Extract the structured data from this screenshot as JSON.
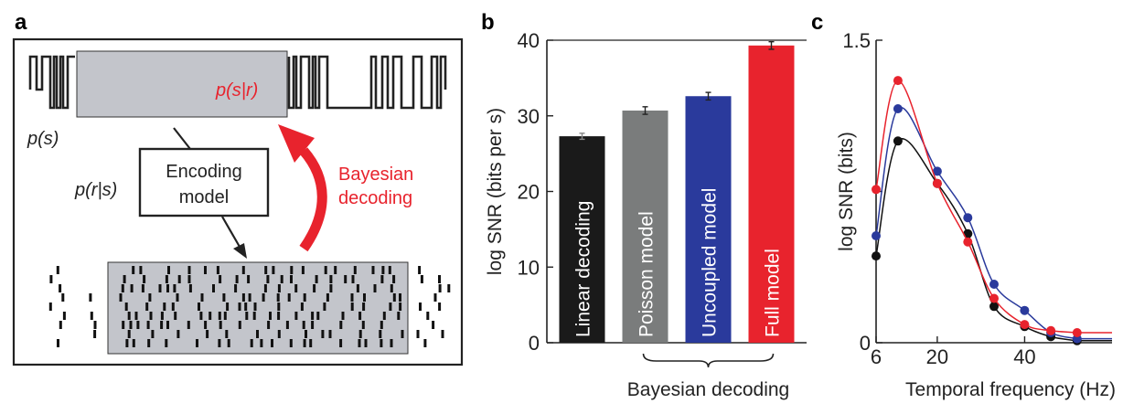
{
  "panels": {
    "a": {
      "letter": "a",
      "ps": "p(s)",
      "psr": "p(s|r)",
      "prs": "p(r|s)",
      "encoding_line1": "Encoding",
      "encoding_line2": "model",
      "bayes_line1": "Bayesian",
      "bayes_line2": "decoding",
      "colors": {
        "red": "#e8232d",
        "gray_box": "#c3c5cb"
      }
    },
    "b": {
      "letter": "b",
      "bracket_label": "Bayesian decoding"
    },
    "c": {
      "letter": "c"
    }
  },
  "chart_data": [
    {
      "type": "bar",
      "categories": [
        "Linear decoding",
        "Poisson model",
        "Uncoupled model",
        "Full model"
      ],
      "values": [
        27.3,
        30.7,
        32.6,
        39.3
      ],
      "errors": [
        0.4,
        0.5,
        0.5,
        0.5
      ],
      "colors": [
        "#1a1a1a",
        "#7a7c7c",
        "#2a3a9c",
        "#e8232d"
      ],
      "ylabel": "log SNR (bits per s)",
      "ylim": [
        0,
        40
      ],
      "yticks": [
        0,
        10,
        20,
        30,
        40
      ],
      "bracket": {
        "label": "Bayesian decoding",
        "spans": [
          "Poisson model",
          "Uncoupled model",
          "Full model"
        ]
      }
    },
    {
      "type": "line",
      "xlabel": "Temporal frequency (Hz)",
      "ylabel": "log SNR (bits)",
      "xlim": [
        6,
        60
      ],
      "ylim": [
        0,
        1.5
      ],
      "xticks": [
        6,
        20,
        40
      ],
      "yticks": [
        0,
        1.5
      ],
      "series": [
        {
          "color": "#e8232d",
          "x": [
            6,
            11,
            20,
            27,
            33,
            40,
            46,
            52
          ],
          "y": [
            0.76,
            1.3,
            0.79,
            0.5,
            0.22,
            0.09,
            0.06,
            0.05
          ]
        },
        {
          "color": "#2a3a9c",
          "x": [
            6,
            11,
            20,
            27,
            33,
            40,
            46,
            52
          ],
          "y": [
            0.53,
            1.16,
            0.85,
            0.62,
            0.29,
            0.16,
            0.05,
            0.02
          ]
        },
        {
          "color": "#111111",
          "x": [
            6,
            11,
            20,
            27,
            33,
            40,
            46,
            52
          ],
          "y": [
            0.43,
            1.0,
            0.79,
            0.54,
            0.18,
            0.08,
            0.03,
            0.01
          ]
        }
      ]
    }
  ]
}
